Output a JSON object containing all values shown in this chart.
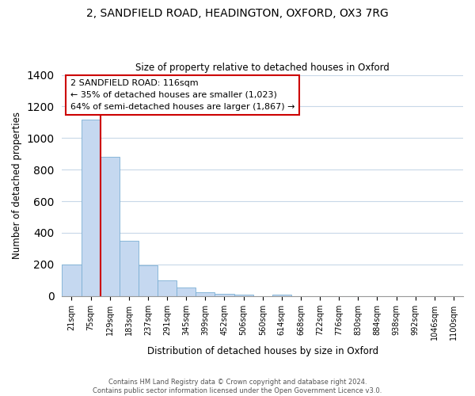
{
  "title1": "2, SANDFIELD ROAD, HEADINGTON, OXFORD, OX3 7RG",
  "title2": "Size of property relative to detached houses in Oxford",
  "xlabel": "Distribution of detached houses by size in Oxford",
  "ylabel": "Number of detached properties",
  "bar_labels": [
    "21sqm",
    "75sqm",
    "129sqm",
    "183sqm",
    "237sqm",
    "291sqm",
    "345sqm",
    "399sqm",
    "452sqm",
    "506sqm",
    "560sqm",
    "614sqm",
    "668sqm",
    "722sqm",
    "776sqm",
    "830sqm",
    "884sqm",
    "938sqm",
    "992sqm",
    "1046sqm",
    "1100sqm"
  ],
  "bar_values": [
    200,
    1115,
    880,
    350,
    195,
    100,
    55,
    25,
    15,
    10,
    0,
    10,
    0,
    0,
    0,
    0,
    0,
    0,
    0,
    0,
    0
  ],
  "bar_color": "#c5d8f0",
  "bar_edge_color": "#7bafd4",
  "vline_x_idx": 2,
  "vline_color": "#cc0000",
  "ylim": [
    0,
    1400
  ],
  "yticks": [
    0,
    200,
    400,
    600,
    800,
    1000,
    1200,
    1400
  ],
  "annotation_title": "2 SANDFIELD ROAD: 116sqm",
  "annotation_line1": "← 35% of detached houses are smaller (1,023)",
  "annotation_line2": "64% of semi-detached houses are larger (1,867) →",
  "annotation_box_color": "#ffffff",
  "annotation_box_edge": "#cc0000",
  "footnote1": "Contains HM Land Registry data © Crown copyright and database right 2024.",
  "footnote2": "Contains public sector information licensed under the Open Government Licence v3.0.",
  "background_color": "#ffffff",
  "grid_color": "#c8d8e8"
}
